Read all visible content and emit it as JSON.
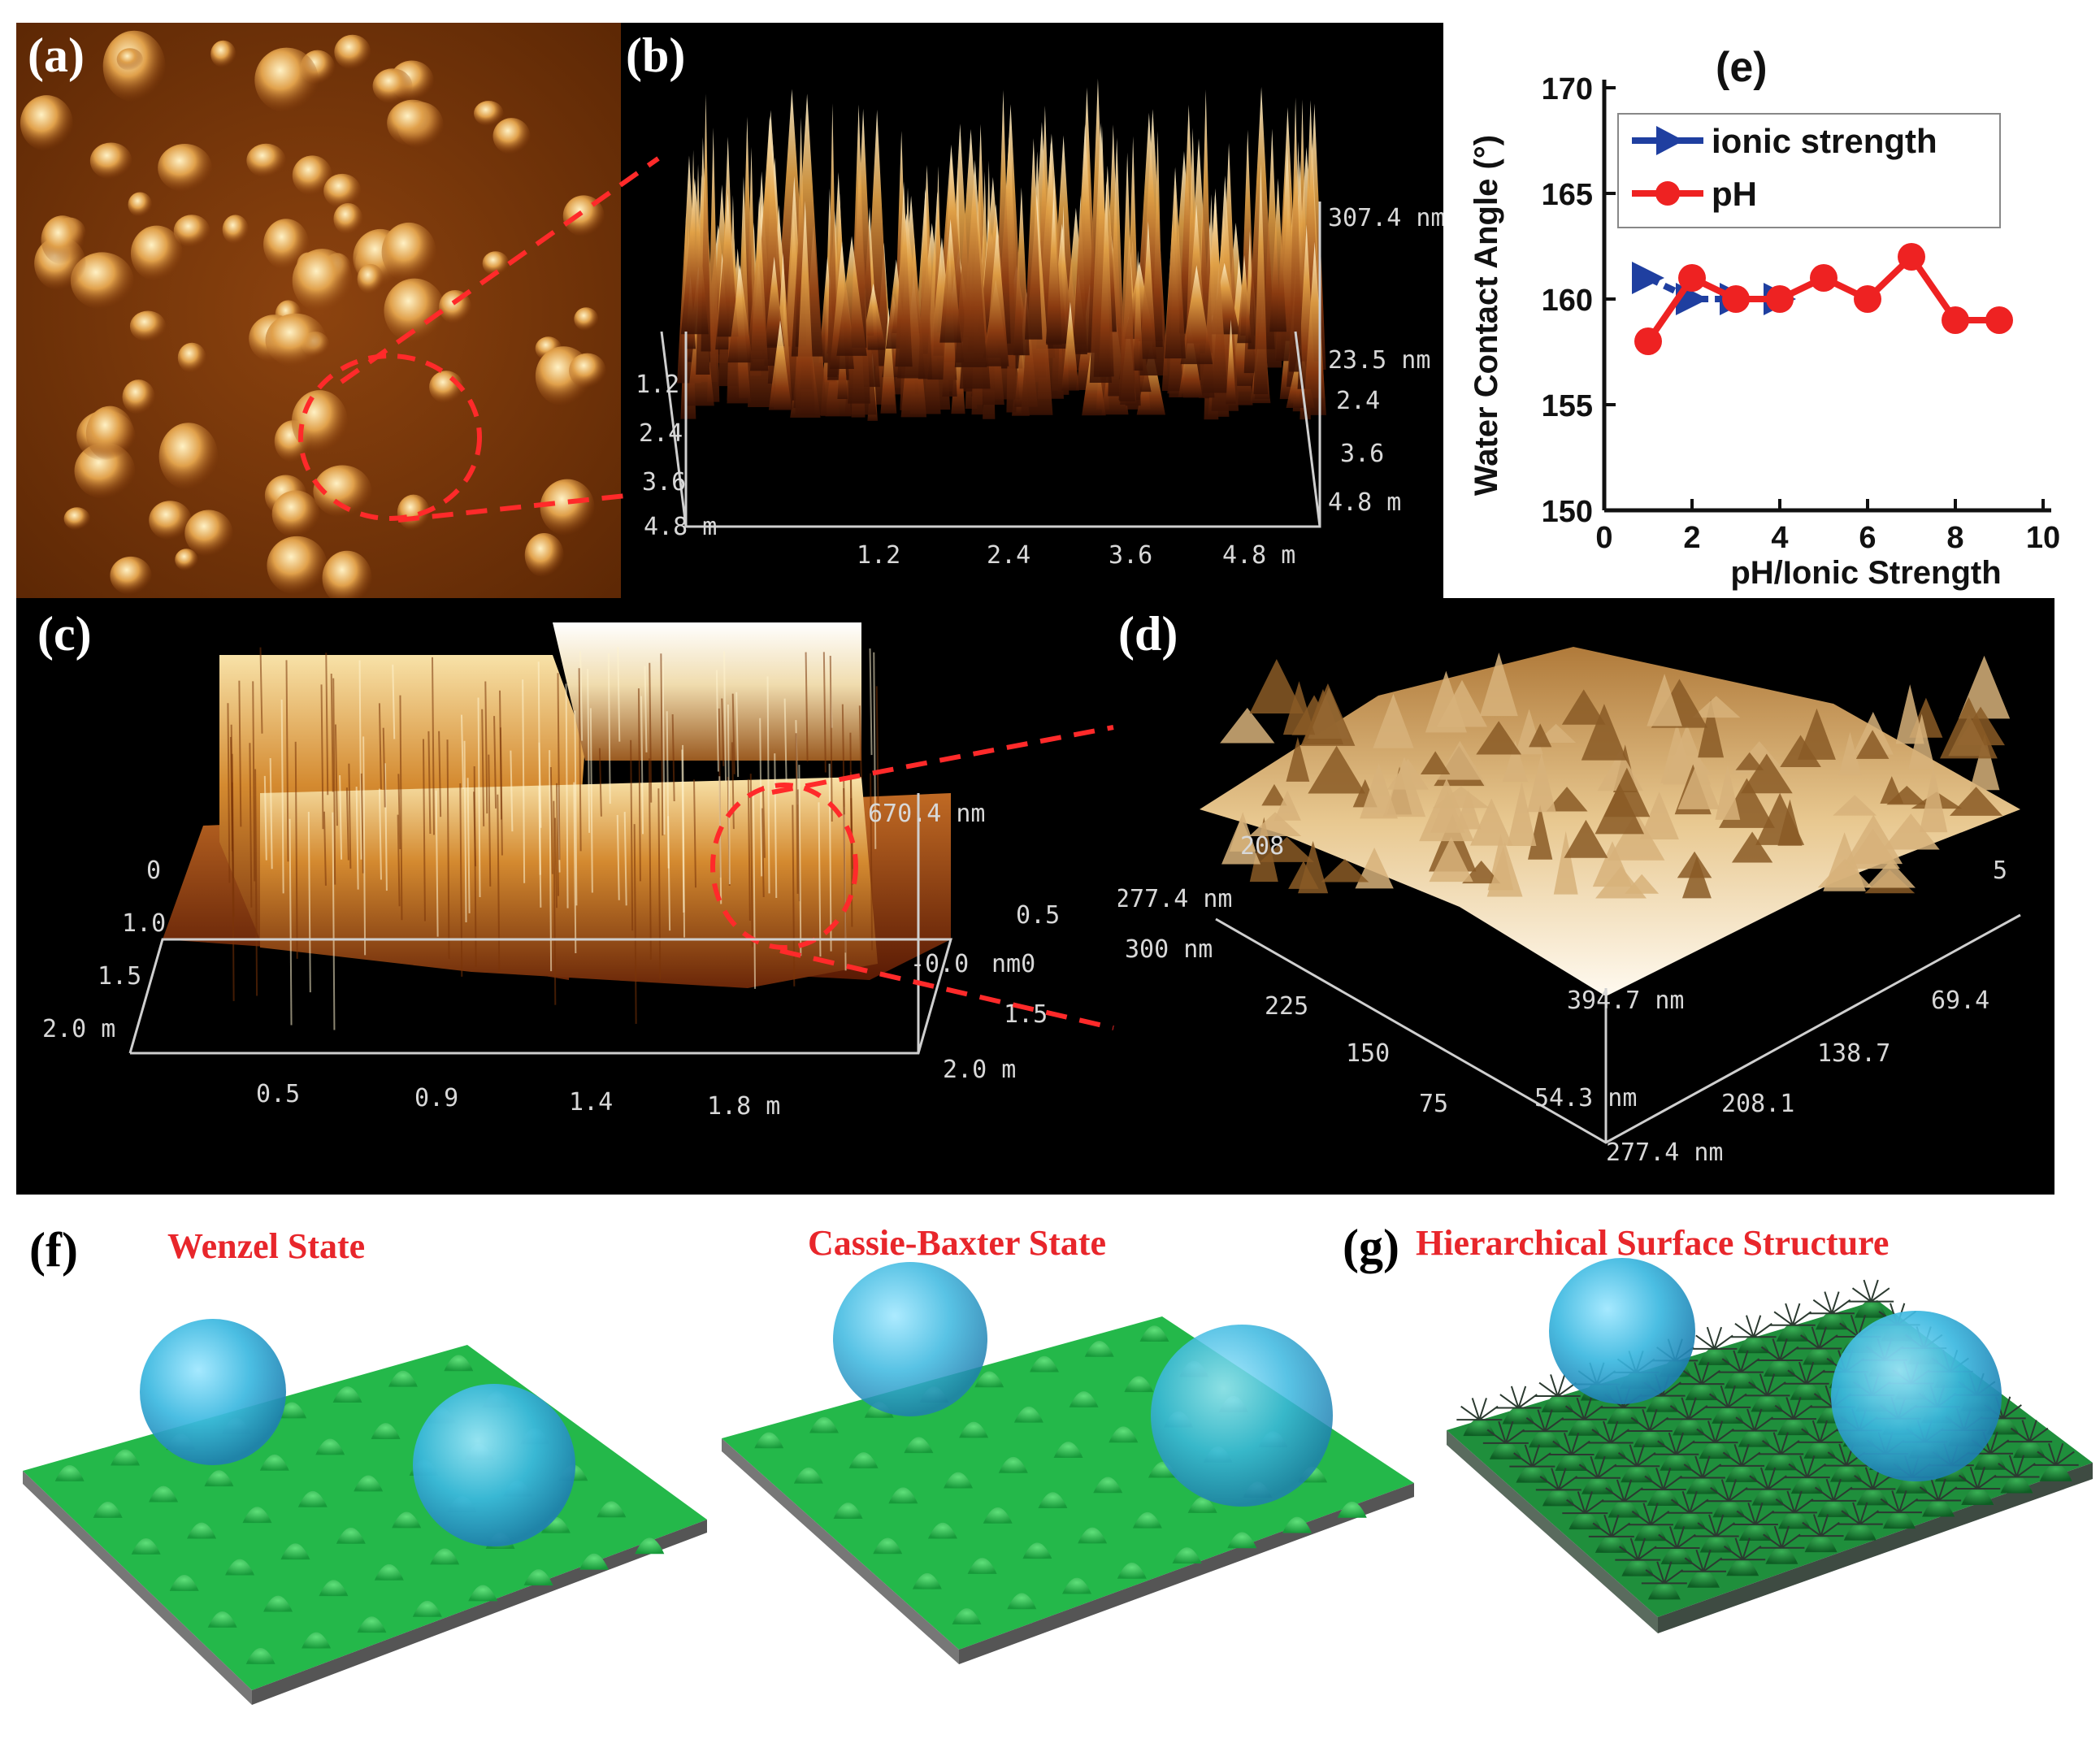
{
  "figure": {
    "panel_labels": {
      "a": "(a)",
      "b": "(b)",
      "c": "(c)",
      "d": "(d)",
      "e": "(e)",
      "f": "(f)",
      "g": "(g)"
    },
    "panel_b": {
      "z_max": "307.4 nm",
      "z_mid": "23.5 nm",
      "left_ticks": [
        "1.2",
        "2.4",
        "3.6",
        "4.8 m"
      ],
      "right_ticks": [
        "2.4",
        "3.6",
        "4.8 m"
      ],
      "bottom_ticks": [
        "1.2",
        "2.4",
        "3.6",
        "4.8 m"
      ]
    },
    "panel_c": {
      "z_max": "670.4 nm",
      "left_ticks": [
        "0",
        "1.0",
        "1.5",
        "2.0 m"
      ],
      "right_ticks": [
        "0.5",
        "-0.0",
        "nm0",
        "1.5",
        "2.0 m"
      ],
      "bottom_ticks": [
        "0.5",
        "0.9",
        "1.4",
        "1.8 m"
      ]
    },
    "panel_d": {
      "top_tick": "208",
      "right_top_tick": "5",
      "left_ticks": [
        "277.4 nm",
        "300 nm",
        "225",
        "150",
        "75"
      ],
      "center_ticks": [
        "394.7 nm",
        "54.3 nm"
      ],
      "right_ticks": [
        "69.4",
        "138.7",
        "208.1",
        "277.4 nm"
      ]
    },
    "panel_f": {
      "wenzel_title": "Wenzel State",
      "cassie_title": "Cassie-Baxter State"
    },
    "panel_g": {
      "title": "Hierarchical Surface Structure"
    },
    "colors": {
      "red_accent": "#e8262b",
      "blue_series": "#1f3fa0",
      "red_series": "#ee2222",
      "substrate_green": "#23b84a",
      "droplet_blue": "#3bb8e0"
    }
  },
  "chart_data": {
    "type": "line",
    "title": "(e)",
    "xlabel": "pH/Ionic Strength",
    "ylabel": "Water Contact Angle (°)",
    "xlim": [
      0,
      10
    ],
    "ylim": [
      150,
      170
    ],
    "x_ticks": [
      "0",
      "2",
      "4",
      "6",
      "8",
      "10"
    ],
    "y_ticks": [
      "150",
      "155",
      "160",
      "165",
      "170"
    ],
    "series": [
      {
        "name": "ionic strength",
        "marker": "triangle-right",
        "color": "#1f3fa0",
        "x": [
          1,
          2,
          3,
          4
        ],
        "values": [
          161,
          160,
          160,
          160
        ]
      },
      {
        "name": "pH",
        "marker": "circle",
        "color": "#ee2222",
        "x": [
          1,
          2,
          3,
          4,
          5,
          6,
          7,
          8,
          9
        ],
        "values": [
          158,
          161,
          160,
          160,
          161,
          160,
          162,
          159,
          159
        ]
      }
    ],
    "legend": "top-right"
  }
}
